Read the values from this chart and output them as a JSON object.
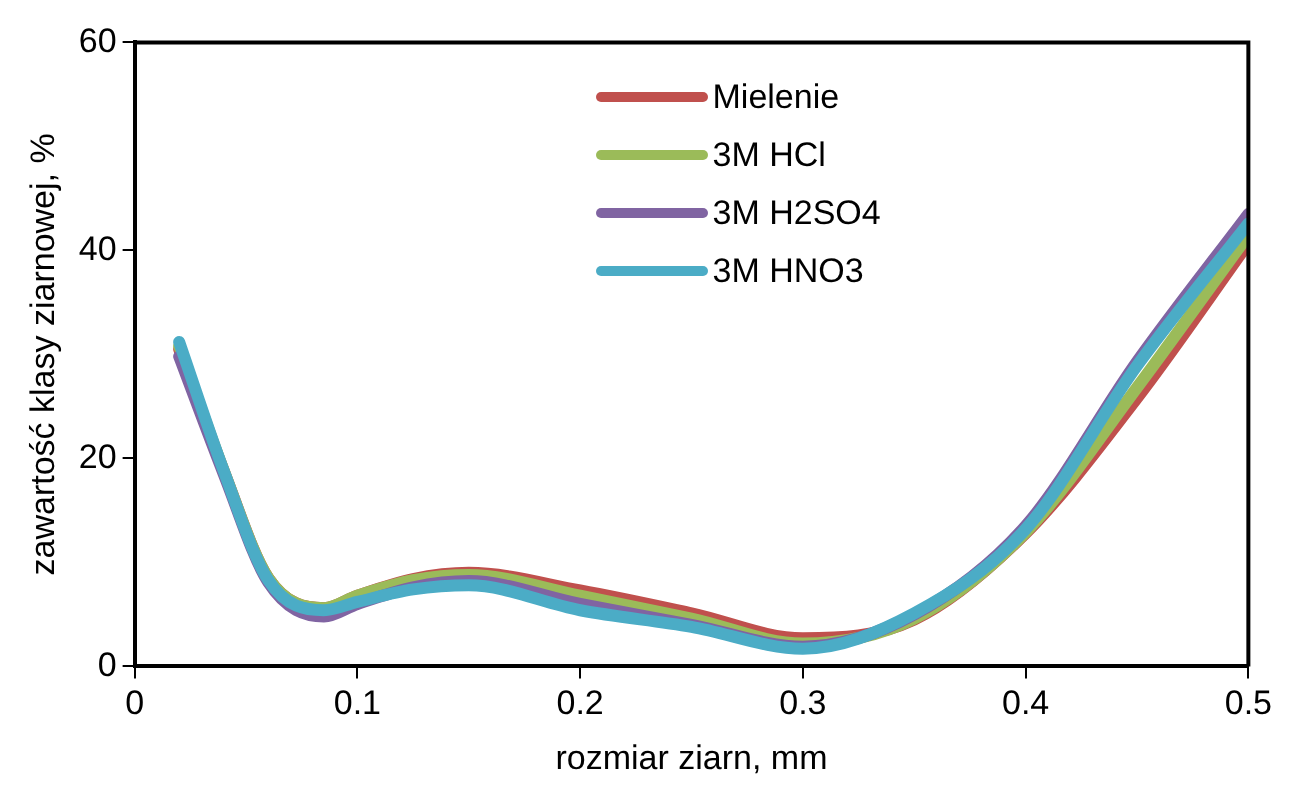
{
  "chart_data": {
    "type": "line",
    "xlabel": "rozmiar ziarn, mm",
    "ylabel": "zawartość klasy ziarnowej, %",
    "x": [
      0.02,
      0.04,
      0.06,
      0.085,
      0.1,
      0.125,
      0.15,
      0.2,
      0.25,
      0.3,
      0.35,
      0.4,
      0.45,
      0.5
    ],
    "series": [
      {
        "name": "Mielenie",
        "color": "#c0504d",
        "values": [
          30.5,
          18.8,
          8.5,
          5.6,
          6.8,
          8.4,
          9.0,
          7.3,
          5.1,
          2.7,
          4.5,
          12.8,
          25.8,
          40.7
        ]
      },
      {
        "name": "3M HCl",
        "color": "#9bbb59",
        "values": [
          30.8,
          18.8,
          8.5,
          5.6,
          6.8,
          8.3,
          8.8,
          6.8,
          4.6,
          2.2,
          4.6,
          12.9,
          26.8,
          41.5
        ]
      },
      {
        "name": "3M H2SO4",
        "color": "#8064a2",
        "values": [
          29.8,
          18.5,
          8.1,
          4.8,
          6.0,
          7.6,
          8.2,
          6.0,
          4.0,
          1.9,
          5.0,
          13.5,
          29.3,
          43.5
        ]
      },
      {
        "name": "3M HNO3",
        "color": "#4bacc6",
        "values": [
          31.2,
          18.8,
          8.3,
          5.4,
          6.2,
          7.4,
          7.8,
          5.4,
          3.8,
          1.7,
          5.1,
          13.2,
          28.9,
          42.6
        ]
      }
    ],
    "xlim": [
      0,
      0.5
    ],
    "xticks": [
      0,
      0.1,
      0.2,
      0.3,
      0.4,
      0.5
    ],
    "ylim": [
      0,
      60
    ],
    "yticks": [
      0,
      20,
      40,
      60
    ],
    "grid": false,
    "legend": "top",
    "marker": "none",
    "line_style": "solid"
  }
}
